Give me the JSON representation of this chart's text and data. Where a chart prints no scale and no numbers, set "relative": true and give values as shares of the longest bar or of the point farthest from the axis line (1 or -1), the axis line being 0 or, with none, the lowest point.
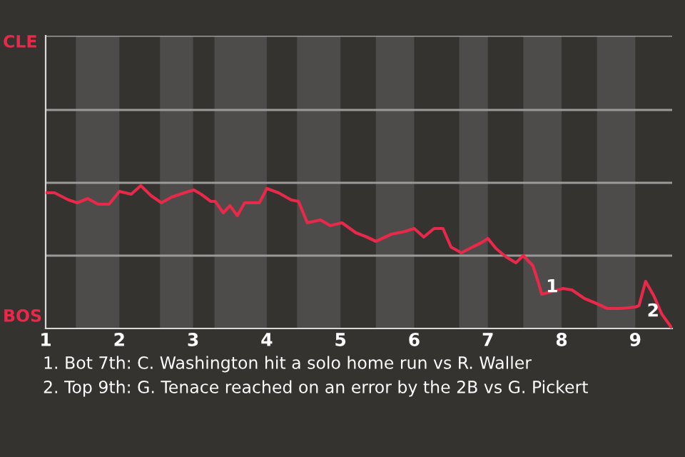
{
  "chart_data": {
    "type": "line",
    "relative": true,
    "x": [
      1.0,
      1.12,
      1.31,
      1.43,
      1.57,
      1.71,
      1.86,
      2.0,
      2.16,
      2.29,
      2.43,
      2.57,
      2.71,
      2.88,
      3.01,
      3.11,
      3.24,
      3.3,
      3.41,
      3.5,
      3.6,
      3.7,
      3.9,
      4.0,
      4.16,
      4.33,
      4.43,
      4.55,
      4.73,
      4.86,
      5.02,
      5.21,
      5.36,
      5.48,
      5.69,
      5.88,
      6.0,
      6.13,
      6.27,
      6.39,
      6.5,
      6.64,
      6.79,
      6.91,
      7.0,
      7.11,
      7.25,
      7.38,
      7.48,
      7.61,
      7.68,
      7.73,
      7.95,
      8.02,
      8.14,
      8.31,
      8.45,
      8.62,
      8.79,
      9.0,
      9.05,
      9.14,
      9.25,
      9.36,
      9.5
    ],
    "series": [
      {
        "color": "#e8294a",
        "values": [
          0.95,
          0.95,
          0.9,
          0.88,
          0.91,
          0.87,
          0.87,
          0.96,
          0.94,
          1,
          0.93,
          0.88,
          0.92,
          0.95,
          0.97,
          0.94,
          0.89,
          0.89,
          0.81,
          0.86,
          0.79,
          0.88,
          0.88,
          0.98,
          0.95,
          0.9,
          0.89,
          0.74,
          0.76,
          0.72,
          0.74,
          0.67,
          0.64,
          0.61,
          0.66,
          0.68,
          0.7,
          0.64,
          0.7,
          0.7,
          0.57,
          0.53,
          0.57,
          0.6,
          0.63,
          0.56,
          0.5,
          0.46,
          0.51,
          0.44,
          0.33,
          0.24,
          0.27,
          0.28,
          0.27,
          0.21,
          0.18,
          0.14,
          0.14,
          0.15,
          0.16,
          0.33,
          0.23,
          0.1,
          0
        ]
      }
    ],
    "xlim": [
      1,
      9.5
    ],
    "xticks": [
      1,
      2,
      3,
      4,
      5,
      6,
      7,
      8,
      9
    ],
    "tick_labels": "x",
    "marker": "none",
    "line_style": "solid",
    "ref_lines": [
      {
        "axis": "y",
        "value": 0.51,
        "label": null,
        "color": "#9a9a9a"
      },
      {
        "axis": "y",
        "value": 1.02,
        "label": null,
        "color": "#9a9a9a"
      },
      {
        "axis": "y",
        "value": 1.53,
        "label": null,
        "color": "#9a9a9a"
      },
      {
        "axis": "y",
        "value": 2.05,
        "label": null,
        "color": "#9a9a9a"
      }
    ],
    "bands": [
      {
        "axis": "x",
        "from": 1.41,
        "to": 2.0,
        "label": null,
        "color": "#4d4c4a"
      },
      {
        "axis": "x",
        "from": 2.55,
        "to": 3.0,
        "label": null,
        "color": "#4d4c4a"
      },
      {
        "axis": "x",
        "from": 3.29,
        "to": 4.0,
        "label": null,
        "color": "#4d4c4a"
      },
      {
        "axis": "x",
        "from": 4.41,
        "to": 5.0,
        "label": null,
        "color": "#4d4c4a"
      },
      {
        "axis": "x",
        "from": 5.48,
        "to": 6.0,
        "label": null,
        "color": "#4d4c4a"
      },
      {
        "axis": "x",
        "from": 6.61,
        "to": 7.0,
        "label": null,
        "color": "#4d4c4a"
      },
      {
        "axis": "x",
        "from": 7.48,
        "to": 8.0,
        "label": null,
        "color": "#4d4c4a"
      },
      {
        "axis": "x",
        "from": 8.48,
        "to": 9.0,
        "label": null,
        "color": "#4d4c4a"
      }
    ],
    "annotations": [
      "CLE",
      "BOS",
      {
        "text": "1",
        "x": 7.68,
        "y": 0.33
      },
      {
        "text": "2",
        "x": 9.05,
        "y": 0.16
      },
      "1. Bot 7th: C. Washington hit a solo home run vs R. Waller",
      "2. Top 9th: G. Tenace reached on an error by the 2B vs G. Pickert"
    ]
  }
}
